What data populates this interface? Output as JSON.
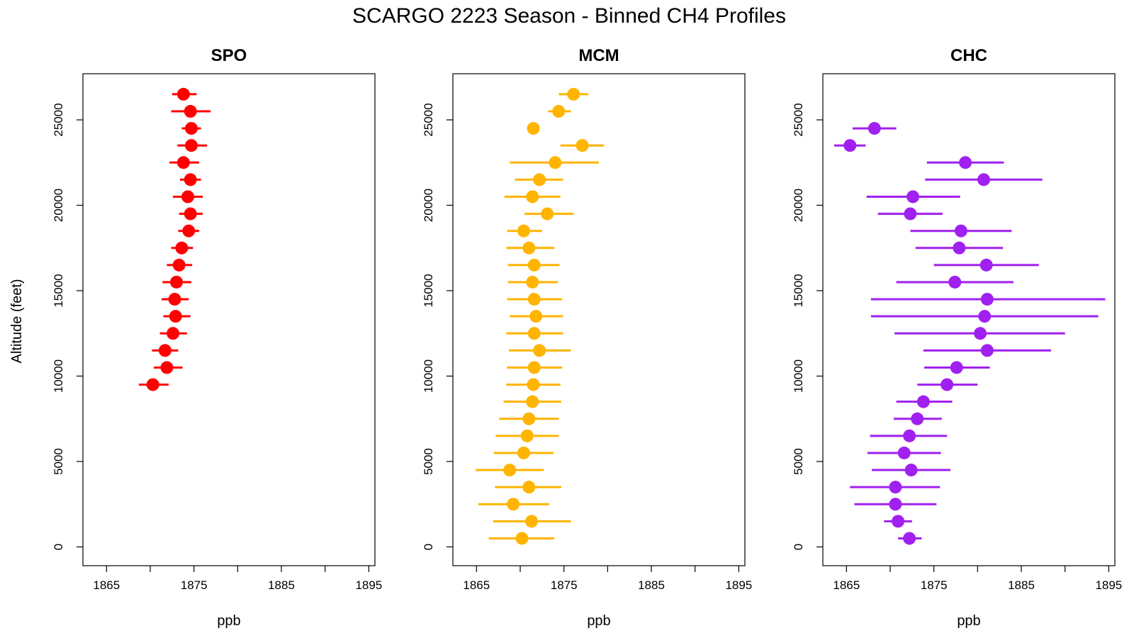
{
  "figure_title": "SCARGO 2223 Season - Binned CH4 Profiles",
  "chart_data": [
    {
      "type": "scatter",
      "subtype": "errorbar-profile",
      "title": "SPO",
      "xlabel": "ppb",
      "ylabel": "Altitude (feet)",
      "xlim": [
        1862.3,
        1895.7
      ],
      "ylim": [
        -1100,
        27700
      ],
      "xticks": [
        1865,
        1870,
        1875,
        1880,
        1885,
        1890,
        1895
      ],
      "xtick_labels": [
        "1865",
        "",
        "1875",
        "",
        "1885",
        "",
        "1895"
      ],
      "yticks": [
        0,
        5000,
        10000,
        15000,
        20000,
        25000
      ],
      "ytick_labels": [
        "0",
        "5000",
        "10000",
        "15000",
        "20000",
        "25000"
      ],
      "color": "#ff0000",
      "points": [
        {
          "alt": 9500,
          "mean": 1870.3,
          "lo": 1868.7,
          "hi": 1872.1
        },
        {
          "alt": 10500,
          "mean": 1871.9,
          "lo": 1870.4,
          "hi": 1873.7
        },
        {
          "alt": 11500,
          "mean": 1871.7,
          "lo": 1870.2,
          "hi": 1873.2
        },
        {
          "alt": 12500,
          "mean": 1872.6,
          "lo": 1871.1,
          "hi": 1874.2
        },
        {
          "alt": 13500,
          "mean": 1872.9,
          "lo": 1871.5,
          "hi": 1874.6
        },
        {
          "alt": 14500,
          "mean": 1872.8,
          "lo": 1871.3,
          "hi": 1874.4
        },
        {
          "alt": 15500,
          "mean": 1873.0,
          "lo": 1871.4,
          "hi": 1874.7
        },
        {
          "alt": 16500,
          "mean": 1873.3,
          "lo": 1871.9,
          "hi": 1874.8
        },
        {
          "alt": 17500,
          "mean": 1873.6,
          "lo": 1872.4,
          "hi": 1874.9
        },
        {
          "alt": 18500,
          "mean": 1874.4,
          "lo": 1873.2,
          "hi": 1875.6
        },
        {
          "alt": 19500,
          "mean": 1874.6,
          "lo": 1873.3,
          "hi": 1876.0
        },
        {
          "alt": 20500,
          "mean": 1874.3,
          "lo": 1872.6,
          "hi": 1876.0
        },
        {
          "alt": 21500,
          "mean": 1874.6,
          "lo": 1873.4,
          "hi": 1875.8
        },
        {
          "alt": 22500,
          "mean": 1873.8,
          "lo": 1872.2,
          "hi": 1875.6
        },
        {
          "alt": 23500,
          "mean": 1874.7,
          "lo": 1873.1,
          "hi": 1876.5
        },
        {
          "alt": 24500,
          "mean": 1874.7,
          "lo": 1873.6,
          "hi": 1875.8
        },
        {
          "alt": 25500,
          "mean": 1874.6,
          "lo": 1872.4,
          "hi": 1876.9
        },
        {
          "alt": 26500,
          "mean": 1873.8,
          "lo": 1872.5,
          "hi": 1875.3
        }
      ]
    },
    {
      "type": "scatter",
      "subtype": "errorbar-profile",
      "title": "MCM",
      "xlabel": "ppb",
      "ylabel": "",
      "xlim": [
        1862.3,
        1895.7
      ],
      "ylim": [
        -1100,
        27700
      ],
      "xticks": [
        1865,
        1870,
        1875,
        1880,
        1885,
        1890,
        1895
      ],
      "xtick_labels": [
        "1865",
        "",
        "1875",
        "",
        "1885",
        "",
        "1895"
      ],
      "yticks": [
        0,
        5000,
        10000,
        15000,
        20000,
        25000
      ],
      "ytick_labels": [
        "0",
        "5000",
        "10000",
        "15000",
        "20000",
        "25000"
      ],
      "color": "#ffb400",
      "points": [
        {
          "alt": 500,
          "mean": 1870.2,
          "lo": 1866.4,
          "hi": 1873.9
        },
        {
          "alt": 1500,
          "mean": 1871.3,
          "lo": 1866.9,
          "hi": 1875.8
        },
        {
          "alt": 2500,
          "mean": 1869.2,
          "lo": 1865.2,
          "hi": 1873.3
        },
        {
          "alt": 3500,
          "mean": 1871.0,
          "lo": 1867.1,
          "hi": 1874.7
        },
        {
          "alt": 4500,
          "mean": 1868.8,
          "lo": 1864.9,
          "hi": 1872.7
        },
        {
          "alt": 5500,
          "mean": 1870.4,
          "lo": 1867.0,
          "hi": 1873.8
        },
        {
          "alt": 6500,
          "mean": 1870.8,
          "lo": 1867.2,
          "hi": 1874.4
        },
        {
          "alt": 7500,
          "mean": 1871.0,
          "lo": 1867.6,
          "hi": 1874.4
        },
        {
          "alt": 8500,
          "mean": 1871.4,
          "lo": 1868.1,
          "hi": 1874.7
        },
        {
          "alt": 9500,
          "mean": 1871.5,
          "lo": 1868.4,
          "hi": 1874.6
        },
        {
          "alt": 10500,
          "mean": 1871.6,
          "lo": 1868.5,
          "hi": 1874.8
        },
        {
          "alt": 11500,
          "mean": 1872.2,
          "lo": 1868.7,
          "hi": 1875.8
        },
        {
          "alt": 12500,
          "mean": 1871.6,
          "lo": 1868.4,
          "hi": 1874.9
        },
        {
          "alt": 13500,
          "mean": 1871.8,
          "lo": 1868.8,
          "hi": 1874.9
        },
        {
          "alt": 14500,
          "mean": 1871.6,
          "lo": 1868.5,
          "hi": 1874.8
        },
        {
          "alt": 15500,
          "mean": 1871.4,
          "lo": 1868.6,
          "hi": 1874.3
        },
        {
          "alt": 16500,
          "mean": 1871.6,
          "lo": 1868.6,
          "hi": 1874.5
        },
        {
          "alt": 17500,
          "mean": 1871.0,
          "lo": 1868.4,
          "hi": 1873.9
        },
        {
          "alt": 18500,
          "mean": 1870.4,
          "lo": 1868.5,
          "hi": 1872.5
        },
        {
          "alt": 19500,
          "mean": 1873.1,
          "lo": 1870.5,
          "hi": 1876.1
        },
        {
          "alt": 20500,
          "mean": 1871.4,
          "lo": 1868.2,
          "hi": 1874.6
        },
        {
          "alt": 21500,
          "mean": 1872.2,
          "lo": 1869.4,
          "hi": 1874.9
        },
        {
          "alt": 22500,
          "mean": 1874.0,
          "lo": 1868.8,
          "hi": 1879.0
        },
        {
          "alt": 23500,
          "mean": 1877.1,
          "lo": 1874.6,
          "hi": 1879.6
        },
        {
          "alt": 24500,
          "mean": 1871.5,
          "lo": 1871.5,
          "hi": 1871.5
        },
        {
          "alt": 25500,
          "mean": 1874.4,
          "lo": 1873.2,
          "hi": 1875.8
        },
        {
          "alt": 26500,
          "mean": 1876.1,
          "lo": 1874.4,
          "hi": 1877.8
        }
      ]
    },
    {
      "type": "scatter",
      "subtype": "errorbar-profile",
      "title": "CHC",
      "xlabel": "ppb",
      "ylabel": "",
      "xlim": [
        1862.3,
        1895.7
      ],
      "ylim": [
        -1100,
        27700
      ],
      "xticks": [
        1865,
        1870,
        1875,
        1880,
        1885,
        1890,
        1895
      ],
      "xtick_labels": [
        "1865",
        "",
        "1875",
        "",
        "1885",
        "",
        "1895"
      ],
      "yticks": [
        0,
        5000,
        10000,
        15000,
        20000,
        25000
      ],
      "ytick_labels": [
        "0",
        "5000",
        "10000",
        "15000",
        "20000",
        "25000"
      ],
      "color": "#a020f0",
      "points": [
        {
          "alt": 500,
          "mean": 1872.2,
          "lo": 1870.9,
          "hi": 1873.6
        },
        {
          "alt": 1500,
          "mean": 1870.9,
          "lo": 1869.3,
          "hi": 1872.5
        },
        {
          "alt": 2500,
          "mean": 1870.6,
          "lo": 1865.9,
          "hi": 1875.3
        },
        {
          "alt": 3500,
          "mean": 1870.6,
          "lo": 1865.4,
          "hi": 1875.7
        },
        {
          "alt": 4500,
          "mean": 1872.4,
          "lo": 1867.9,
          "hi": 1876.9
        },
        {
          "alt": 5500,
          "mean": 1871.6,
          "lo": 1867.4,
          "hi": 1875.8
        },
        {
          "alt": 6500,
          "mean": 1872.2,
          "lo": 1867.7,
          "hi": 1876.5
        },
        {
          "alt": 7500,
          "mean": 1873.1,
          "lo": 1870.4,
          "hi": 1875.9
        },
        {
          "alt": 8500,
          "mean": 1873.8,
          "lo": 1870.7,
          "hi": 1877.1
        },
        {
          "alt": 9500,
          "mean": 1876.5,
          "lo": 1873.1,
          "hi": 1880.0
        },
        {
          "alt": 10500,
          "mean": 1877.6,
          "lo": 1873.9,
          "hi": 1881.4
        },
        {
          "alt": 11500,
          "mean": 1881.1,
          "lo": 1873.8,
          "hi": 1888.4
        },
        {
          "alt": 12500,
          "mean": 1880.3,
          "lo": 1870.5,
          "hi": 1890.0
        },
        {
          "alt": 13500,
          "mean": 1880.8,
          "lo": 1867.8,
          "hi": 1893.8
        },
        {
          "alt": 14500,
          "mean": 1881.1,
          "lo": 1867.8,
          "hi": 1894.6
        },
        {
          "alt": 15500,
          "mean": 1877.4,
          "lo": 1870.7,
          "hi": 1884.1
        },
        {
          "alt": 16500,
          "mean": 1881.0,
          "lo": 1875.0,
          "hi": 1887.0
        },
        {
          "alt": 17500,
          "mean": 1877.9,
          "lo": 1872.9,
          "hi": 1882.9
        },
        {
          "alt": 18500,
          "mean": 1878.1,
          "lo": 1872.3,
          "hi": 1883.9
        },
        {
          "alt": 19500,
          "mean": 1872.3,
          "lo": 1868.6,
          "hi": 1876.0
        },
        {
          "alt": 20500,
          "mean": 1872.6,
          "lo": 1867.3,
          "hi": 1878.0
        },
        {
          "alt": 21500,
          "mean": 1880.7,
          "lo": 1874.0,
          "hi": 1887.4
        },
        {
          "alt": 22500,
          "mean": 1878.6,
          "lo": 1874.2,
          "hi": 1883.0
        },
        {
          "alt": 23500,
          "mean": 1865.4,
          "lo": 1863.6,
          "hi": 1867.2
        },
        {
          "alt": 24500,
          "mean": 1868.2,
          "lo": 1865.7,
          "hi": 1870.7
        }
      ]
    }
  ]
}
